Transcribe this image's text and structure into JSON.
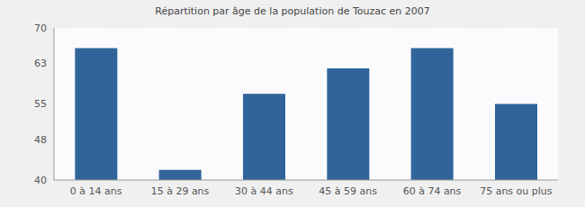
{
  "chart_data": {
    "type": "bar",
    "title": "Répartition par âge de la population de Touzac en 2007",
    "categories": [
      "0 à 14 ans",
      "15 à 29 ans",
      "30 à 44 ans",
      "45 à 59 ans",
      "60 à 74 ans",
      "75 ans ou plus"
    ],
    "values": [
      66,
      42,
      57,
      62,
      66,
      55
    ],
    "color": "#31649a",
    "ylim": [
      40,
      70
    ],
    "yticks": [
      40,
      48,
      55,
      63,
      70
    ],
    "grid": true
  }
}
